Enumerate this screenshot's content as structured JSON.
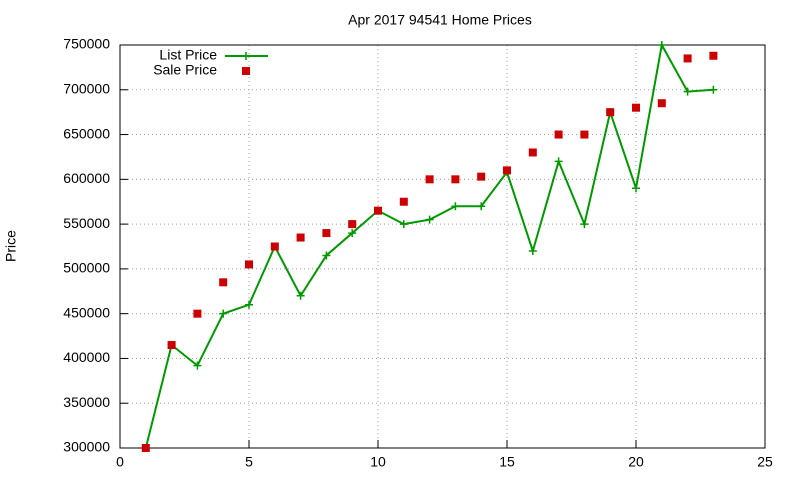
{
  "chart_data": {
    "type": "line",
    "title": "Apr 2017 94541 Home Prices",
    "y_label": "Price",
    "x": [
      1,
      2,
      3,
      4,
      5,
      6,
      7,
      8,
      9,
      10,
      11,
      12,
      13,
      14,
      15,
      16,
      17,
      18,
      19,
      20,
      21,
      22,
      23
    ],
    "series": [
      {
        "name": "List Price",
        "color": "#009900",
        "mode": "lines+points",
        "marker": "plus",
        "values": [
          300000,
          415000,
          392000,
          450000,
          460000,
          525000,
          470000,
          515000,
          540000,
          565000,
          550000,
          555000,
          570000,
          570000,
          608000,
          520000,
          620000,
          550000,
          675000,
          590000,
          750000,
          698000,
          700000
        ]
      },
      {
        "name": "Sale Price",
        "color": "#cc0000",
        "mode": "points",
        "marker": "square",
        "values": [
          300000,
          415000,
          450000,
          485000,
          505000,
          525000,
          535000,
          540000,
          550000,
          565000,
          575000,
          600000,
          600000,
          603000,
          610000,
          630000,
          650000,
          650000,
          675000,
          680000,
          685000,
          735000,
          738000
        ]
      }
    ],
    "xlim": [
      0,
      25
    ],
    "xticks": [
      0,
      5,
      10,
      15,
      20,
      25
    ],
    "ylim": [
      300000,
      750000
    ],
    "yticks": [
      300000,
      350000,
      400000,
      450000,
      500000,
      550000,
      600000,
      650000,
      700000,
      750000
    ],
    "grid": true,
    "legend": "top-left"
  }
}
